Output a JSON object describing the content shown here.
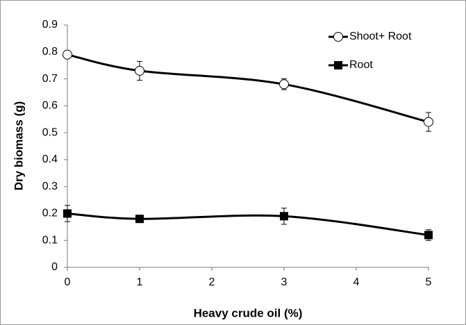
{
  "chart_data": {
    "type": "line",
    "xlabel": "Heavy crude oil (%)",
    "ylabel": "Dry biomass (g)",
    "x": [
      0,
      1,
      3,
      5
    ],
    "series": [
      {
        "name": "Shoot+ Root",
        "color": "#000000",
        "marker": "open-circle",
        "values": [
          0.79,
          0.73,
          0.68,
          0.54
        ],
        "errors": [
          0.01,
          0.035,
          0.02,
          0.035
        ]
      },
      {
        "name": "Root",
        "color": "#000000",
        "marker": "filled-square",
        "values": [
          0.2,
          0.18,
          0.19,
          0.12
        ],
        "errors": [
          0.03,
          0.01,
          0.03,
          0.02
        ]
      }
    ],
    "xlim": [
      0,
      5
    ],
    "xticks": [
      0,
      1,
      2,
      3,
      4,
      5
    ],
    "ylim": [
      0,
      0.9
    ],
    "yticks": [
      0,
      0.1,
      0.2,
      0.3,
      0.4,
      0.5,
      0.6,
      0.7,
      0.8,
      0.9
    ],
    "smooth": true,
    "grid": false,
    "legend": "upper right"
  }
}
